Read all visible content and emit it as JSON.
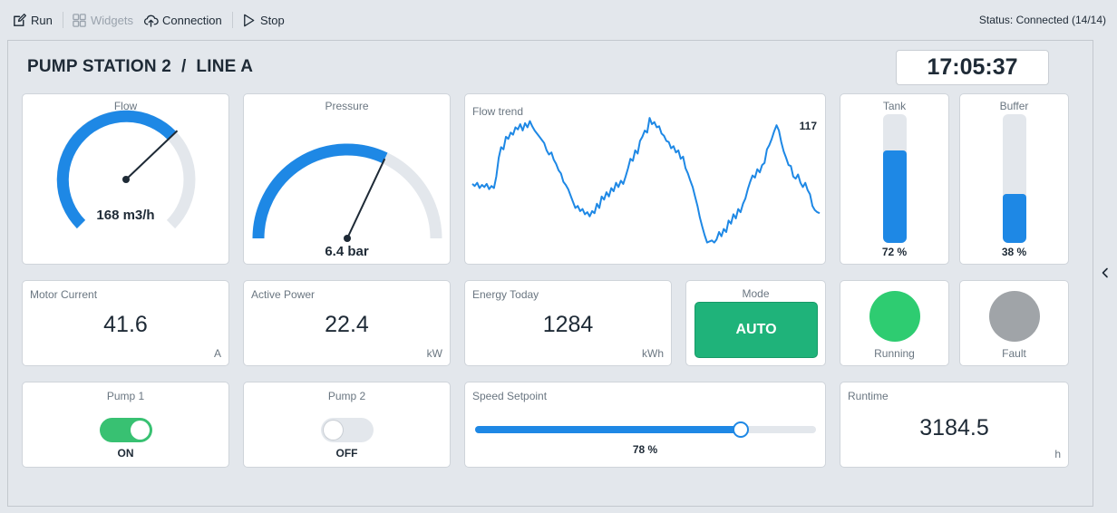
{
  "toolbar": {
    "run_label": "Run",
    "widgets_label": "Widgets",
    "connection_label": "Connection",
    "stop_label": "Stop",
    "status": "Status: Connected (14/14)"
  },
  "dashboard": {
    "title": "PUMP STATION 2  /  LINE A",
    "clock": "17:05:37"
  },
  "flow": {
    "title": "Flow",
    "value_text": "168 m3/h",
    "value": 168,
    "min": 0,
    "max": 250,
    "color": "#1e88e5"
  },
  "pressure": {
    "title": "Pressure",
    "value_text": "6.4 bar",
    "value": 6.4,
    "min": 0,
    "max": 10,
    "color": "#1e88e5"
  },
  "trend": {
    "title": "Flow trend",
    "last_value": "117",
    "line_color": "#1e88e5"
  },
  "chart_data": {
    "type": "line",
    "title": "Flow trend",
    "series": [
      {
        "values": [
          145,
          143,
          146,
          141,
          144,
          142,
          145,
          140,
          143,
          141,
          152,
          170,
          180,
          178,
          190,
          188,
          194,
          192,
          199,
          197,
          202,
          196,
          203,
          199,
          205,
          200,
          196,
          193,
          190,
          187,
          184,
          177,
          173,
          175,
          168,
          164,
          158,
          155,
          147,
          144,
          140,
          134,
          128,
          122,
          124,
          119,
          121,
          116,
          118,
          114,
          119,
          117,
          126,
          122,
          133,
          130,
          137,
          133,
          141,
          138,
          146,
          142,
          148,
          145,
          152,
          160,
          169,
          167,
          177,
          174,
          186,
          190,
          196,
          194,
          208,
          202,
          204,
          199,
          200,
          193,
          191,
          186,
          185,
          179,
          181,
          175,
          177,
          169,
          171,
          160,
          155,
          148,
          142,
          133,
          124,
          113,
          104,
          96,
          89,
          90,
          91,
          89,
          92,
          99,
          95,
          102,
          99,
          110,
          107,
          116,
          112,
          121,
          118,
          126,
          131,
          140,
          147,
          153,
          151,
          159,
          156,
          163,
          165,
          178,
          182,
          188,
          195,
          201,
          196,
          185,
          176,
          170,
          163,
          162,
          152,
          150,
          154,
          146,
          142,
          146,
          139,
          135,
          124,
          120,
          118,
          117
        ]
      }
    ],
    "ylim": [
      80,
      215
    ]
  },
  "tank": {
    "title": "Tank",
    "level_pct": 72,
    "level_text": "72 %"
  },
  "buffer": {
    "title": "Buffer",
    "level_pct": 38,
    "level_text": "38 %"
  },
  "motor_current": {
    "title": "Motor Current",
    "value": "41.6",
    "unit": "A"
  },
  "active_power": {
    "title": "Active Power",
    "value": "22.4",
    "unit": "kW"
  },
  "energy_today": {
    "title": "Energy Today",
    "value": "1284",
    "unit": "kWh"
  },
  "mode": {
    "title": "Mode",
    "value": "AUTO",
    "color": "#1fb37a"
  },
  "running": {
    "label": "Running",
    "color": "#2ecc71"
  },
  "fault": {
    "label": "Fault",
    "color": "#a0a4a8"
  },
  "pump1": {
    "title": "Pump 1",
    "state": "ON",
    "on": true,
    "color": "#38c172"
  },
  "pump2": {
    "title": "Pump 2",
    "state": "OFF",
    "on": false,
    "color": "#e3e7ec"
  },
  "speed": {
    "title": "Speed Setpoint",
    "value_pct": 78,
    "value_text": "78 %"
  },
  "runtime": {
    "title": "Runtime",
    "value": "3184.5",
    "unit": "h"
  },
  "icons": {
    "run": "edit-icon",
    "widgets": "grid-icon",
    "connection": "cloud-upload-icon",
    "stop": "play-icon",
    "collapse": "chevron-left-icon"
  }
}
